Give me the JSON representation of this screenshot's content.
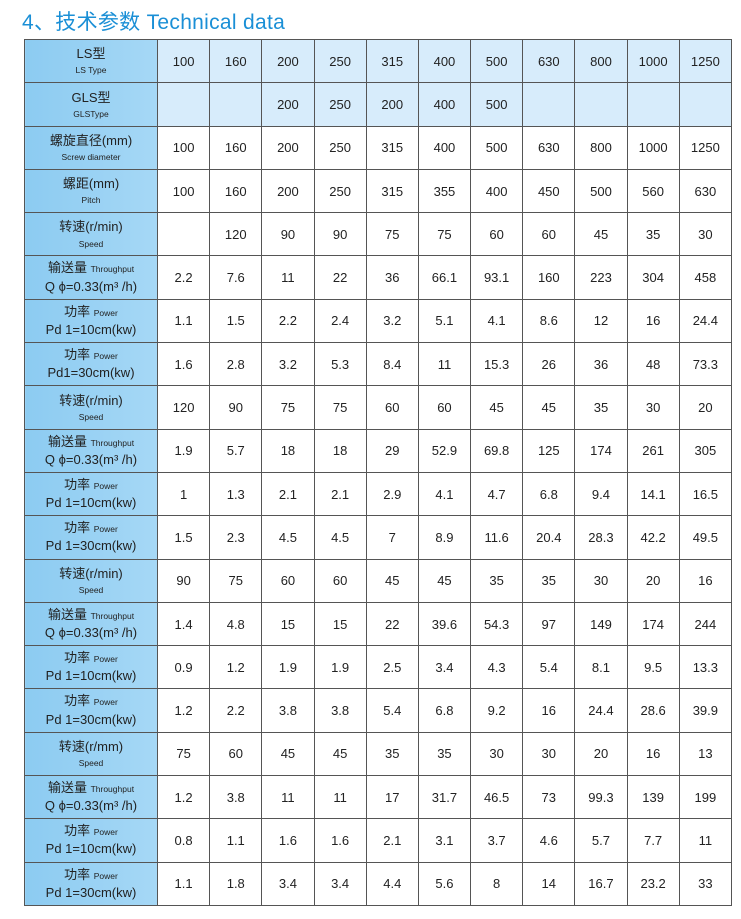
{
  "title": "4、技术参数   Technical data",
  "rows": [
    {
      "label": {
        "a": "LS型",
        "a_en": "",
        "b": "LS Type",
        "b_small": true
      },
      "values": [
        "100",
        "160",
        "200",
        "250",
        "315",
        "400",
        "500",
        "630",
        "800",
        "1000",
        "1250"
      ]
    },
    {
      "label": {
        "a": "GLS型",
        "a_en": "",
        "b": "GLSType",
        "b_small": true
      },
      "values": [
        "",
        "",
        "200",
        "250",
        "200",
        "400",
        "500",
        "",
        "",
        "",
        ""
      ]
    },
    {
      "label": {
        "a": "螺旋直径(mm)",
        "a_en": "",
        "b": "Screw diameter",
        "b_small": true
      },
      "values": [
        "100",
        "160",
        "200",
        "250",
        "315",
        "400",
        "500",
        "630",
        "800",
        "1000",
        "1250"
      ]
    },
    {
      "label": {
        "a": "螺距(mm)",
        "a_en": "",
        "b": "Pitch",
        "b_small": true
      },
      "values": [
        "100",
        "160",
        "200",
        "250",
        "315",
        "355",
        "400",
        "450",
        "500",
        "560",
        "630"
      ]
    },
    {
      "label": {
        "a": "转速(r/min)",
        "a_en": "",
        "b": "Speed",
        "b_small": true
      },
      "values": [
        "",
        "120",
        "90",
        "90",
        "75",
        "75",
        "60",
        "60",
        "45",
        "35",
        "30"
      ]
    },
    {
      "label": {
        "a": "输送量",
        "a_en": "Throughput",
        "b": "Q ϕ=0.33(m³ /h)",
        "b_small": false
      },
      "values": [
        "2.2",
        "7.6",
        "11",
        "22",
        "36",
        "66.1",
        "93.1",
        "160",
        "223",
        "304",
        "458"
      ]
    },
    {
      "label": {
        "a": "功率",
        "a_en": "Power",
        "b": "Pd 1=10cm(kw)",
        "b_small": false
      },
      "values": [
        "1.1",
        "1.5",
        "2.2",
        "2.4",
        "3.2",
        "5.1",
        "4.1",
        "8.6",
        "12",
        "16",
        "24.4"
      ]
    },
    {
      "label": {
        "a": "功率",
        "a_en": "Power",
        "b": "Pd1=30cm(kw)",
        "b_small": false
      },
      "values": [
        "1.6",
        "2.8",
        "3.2",
        "5.3",
        "8.4",
        "11",
        "15.3",
        "26",
        "36",
        "48",
        "73.3"
      ]
    },
    {
      "label": {
        "a": "转速(r/min)",
        "a_en": "",
        "b": "Speed",
        "b_small": true
      },
      "values": [
        "120",
        "90",
        "75",
        "75",
        "60",
        "60",
        "45",
        "45",
        "35",
        "30",
        "20"
      ]
    },
    {
      "label": {
        "a": "输送量",
        "a_en": "Throughput",
        "b": "Q ϕ=0.33(m³ /h)",
        "b_small": false
      },
      "values": [
        "1.9",
        "5.7",
        "18",
        "18",
        "29",
        "52.9",
        "69.8",
        "125",
        "174",
        "261",
        "305"
      ]
    },
    {
      "label": {
        "a": "功率",
        "a_en": "Power",
        "b": "Pd 1=10cm(kw)",
        "b_small": false
      },
      "values": [
        "1",
        "1.3",
        "2.1",
        "2.1",
        "2.9",
        "4.1",
        "4.7",
        "6.8",
        "9.4",
        "14.1",
        "16.5"
      ]
    },
    {
      "label": {
        "a": "功率",
        "a_en": "Power",
        "b": "Pd 1=30cm(kw)",
        "b_small": false
      },
      "values": [
        "1.5",
        "2.3",
        "4.5",
        "4.5",
        "7",
        "8.9",
        "11.6",
        "20.4",
        "28.3",
        "42.2",
        "49.5"
      ]
    },
    {
      "label": {
        "a": "转速(r/min)",
        "a_en": "",
        "b": "Speed",
        "b_small": true
      },
      "values": [
        "90",
        "75",
        "60",
        "60",
        "45",
        "45",
        "35",
        "35",
        "30",
        "20",
        "16"
      ]
    },
    {
      "label": {
        "a": "输送量",
        "a_en": "Throughput",
        "b": "Q ϕ=0.33(m³ /h)",
        "b_small": false
      },
      "values": [
        "1.4",
        "4.8",
        "15",
        "15",
        "22",
        "39.6",
        "54.3",
        "97",
        "149",
        "174",
        "244"
      ]
    },
    {
      "label": {
        "a": "功率",
        "a_en": "Power",
        "b": "Pd 1=10cm(kw)",
        "b_small": false
      },
      "values": [
        "0.9",
        "1.2",
        "1.9",
        "1.9",
        "2.5",
        "3.4",
        "4.3",
        "5.4",
        "8.1",
        "9.5",
        "13.3"
      ]
    },
    {
      "label": {
        "a": "功率",
        "a_en": "Power",
        "b": "Pd 1=30cm(kw)",
        "b_small": false
      },
      "values": [
        "1.2",
        "2.2",
        "3.8",
        "3.8",
        "5.4",
        "6.8",
        "9.2",
        "16",
        "24.4",
        "28.6",
        "39.9"
      ]
    },
    {
      "label": {
        "a": "转速(r/mm)",
        "a_en": "",
        "b": "Speed",
        "b_small": true
      },
      "values": [
        "75",
        "60",
        "45",
        "45",
        "35",
        "35",
        "30",
        "30",
        "20",
        "16",
        "13"
      ]
    },
    {
      "label": {
        "a": "输送量",
        "a_en": "Throughput",
        "b": "Q ϕ=0.33(m³ /h)",
        "b_small": false
      },
      "values": [
        "1.2",
        "3.8",
        "11",
        "11",
        "17",
        "31.7",
        "46.5",
        "73",
        "99.3",
        "139",
        "199"
      ]
    },
    {
      "label": {
        "a": "功率",
        "a_en": "Power",
        "b": "Pd 1=10cm(kw)",
        "b_small": false
      },
      "values": [
        "0.8",
        "1.1",
        "1.6",
        "1.6",
        "2.1",
        "3.1",
        "3.7",
        "4.6",
        "5.7",
        "7.7",
        "11"
      ]
    },
    {
      "label": {
        "a": "功率",
        "a_en": "Power",
        "b": "Pd 1=30cm(kw)",
        "b_small": false
      },
      "values": [
        "1.1",
        "1.8",
        "3.4",
        "3.4",
        "4.4",
        "5.6",
        "8",
        "14",
        "16.7",
        "23.2",
        "33"
      ]
    }
  ]
}
